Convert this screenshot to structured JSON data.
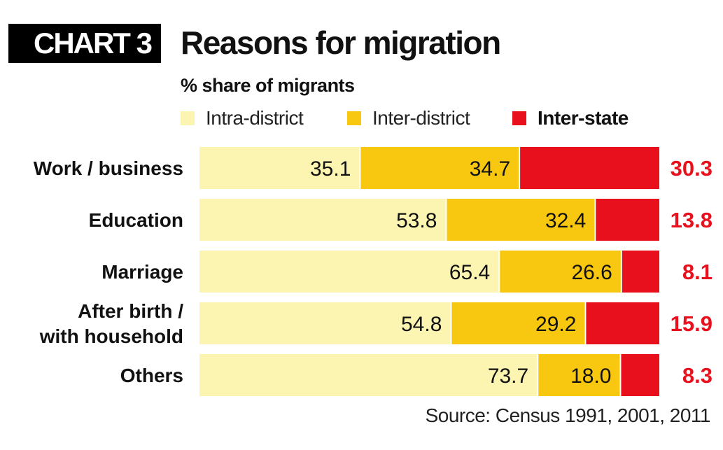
{
  "header": {
    "badge": "CHART 3",
    "title": "Reasons for migration",
    "subtitle": "% share of migrants"
  },
  "source": "Source: Census 1991, 2001, 2011",
  "colors": {
    "intra_district": "#fcf5b2",
    "inter_district": "#f8c810",
    "inter_state": "#e8101c"
  },
  "chart_data": {
    "type": "bar",
    "orientation": "horizontal",
    "stacked": true,
    "title": "Reasons for migration",
    "subtitle": "% share of migrants",
    "xlim": [
      0,
      100
    ],
    "categories": [
      [
        "Work / business"
      ],
      [
        "Education"
      ],
      [
        "Marriage"
      ],
      [
        "After birth /",
        "with household"
      ],
      [
        "Others"
      ]
    ],
    "series": [
      {
        "name": "Intra-district",
        "color": "#fcf5b2",
        "values": [
          35.1,
          53.8,
          65.4,
          54.8,
          73.7
        ],
        "labels": [
          "35.1",
          "53.8",
          "65.4",
          "54.8",
          "73.7"
        ]
      },
      {
        "name": "Inter-district",
        "color": "#f8c810",
        "values": [
          34.7,
          32.4,
          26.6,
          29.2,
          18.0
        ],
        "labels": [
          "34.7",
          "32.4",
          "26.6",
          "29.2",
          "18.0"
        ]
      },
      {
        "name": "Inter-state",
        "color": "#e8101c",
        "values": [
          30.3,
          13.8,
          8.1,
          15.9,
          8.3
        ],
        "labels": [
          "30.3",
          "13.8",
          "8.1",
          "15.9",
          "8.3"
        ]
      }
    ],
    "legend_position": "top",
    "grid": false,
    "source": "Source: Census 1991, 2001, 2011"
  }
}
